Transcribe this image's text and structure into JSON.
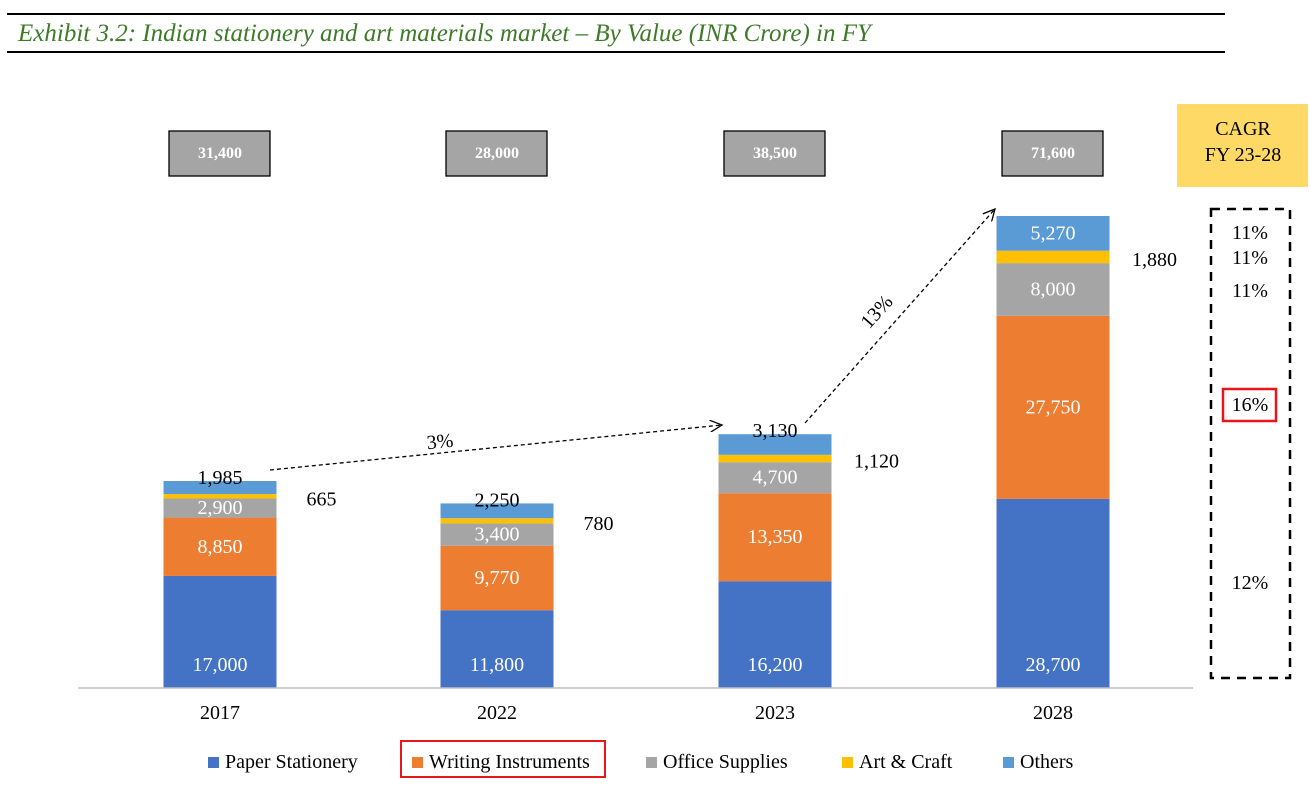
{
  "header": {
    "title": "Exhibit 3.2: Indian stationery and art materials market – By Value (INR Crore) in FY"
  },
  "chart_data": {
    "type": "bar",
    "stacked": true,
    "title": "Exhibit 3.2: Indian stationery and art materials market – By Value (INR Crore) in FY",
    "categories": [
      "2017",
      "2022",
      "2023",
      "2028"
    ],
    "series": [
      {
        "name": "Paper Stationery",
        "color": "#4472c4",
        "values": [
          17000,
          11800,
          16200,
          28700
        ],
        "labels": [
          "17,000",
          "11,800",
          "16,200",
          "28,700"
        ]
      },
      {
        "name": "Writing Instruments",
        "color": "#ed7d31",
        "values": [
          8850,
          9770,
          13350,
          27750
        ],
        "labels": [
          "8,850",
          "9,770",
          "13,350",
          "27,750"
        ]
      },
      {
        "name": "Office Supplies",
        "color": "#a5a5a5",
        "values": [
          2900,
          3400,
          4700,
          8000
        ],
        "labels": [
          "2,900",
          "3,400",
          "4,700",
          "8,000"
        ]
      },
      {
        "name": "Art & Craft",
        "color": "#ffc000",
        "values": [
          665,
          780,
          1120,
          1880
        ],
        "labels": [
          "665",
          "780",
          "1,120",
          "1,880"
        ]
      },
      {
        "name": "Others",
        "color": "#5b9bd5",
        "values": [
          1985,
          2250,
          3130,
          5270
        ],
        "labels": [
          "1,985",
          "2,250",
          "3,130",
          "5,270"
        ]
      }
    ],
    "totals": [
      "31,400",
      "28,000",
      "38,500",
      "71,600"
    ],
    "growth_arrows": [
      {
        "from": "2017",
        "to": "2023",
        "label": "3%"
      },
      {
        "from": "2023",
        "to": "2028",
        "label": "13%"
      }
    ],
    "cagr": {
      "header_line1": "CAGR",
      "header_line2": "FY 23-28",
      "values": {
        "Others": "11%",
        "Art & Craft": "11%",
        "Office Supplies": "11%",
        "Writing Instruments": "16%",
        "Paper Stationery": "12%"
      },
      "highlight": "Writing Instruments"
    },
    "legend": [
      "Paper Stationery",
      "Writing Instruments",
      "Office Supplies",
      "Art & Craft",
      "Others"
    ],
    "legend_position": "bottom",
    "highlighted_legend": "Writing Instruments",
    "grid": false
  }
}
